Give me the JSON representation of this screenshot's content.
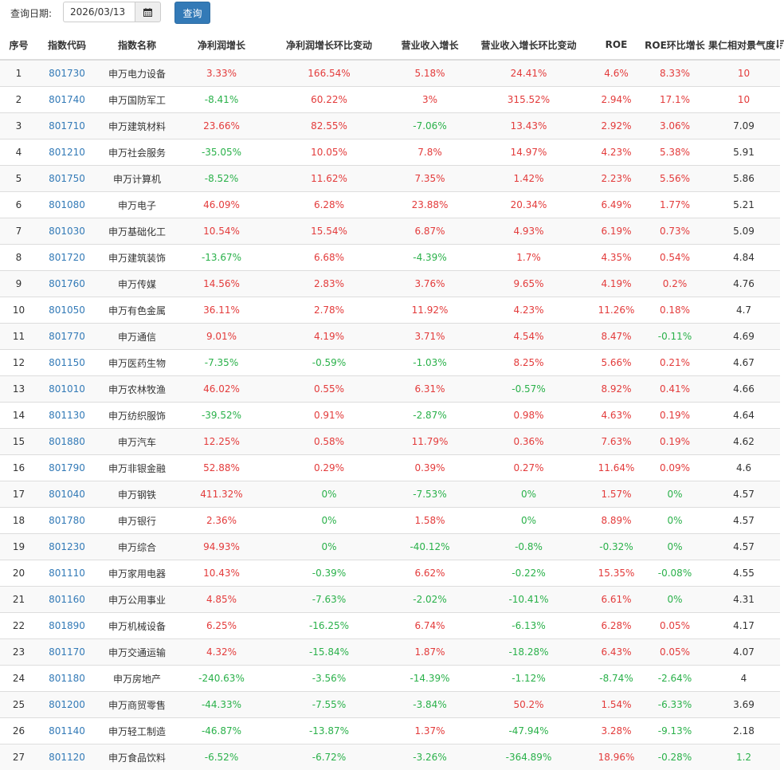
{
  "toolbar": {
    "query_label": "查询日期:",
    "date_value": "2026/03/13",
    "calendar_icon": "calendar-icon",
    "query_button": "查询"
  },
  "colors": {
    "positive": "#e33b3b",
    "negative": "#2ab14a",
    "link": "#337ab7",
    "button": "#337ab7"
  },
  "table": {
    "headers": [
      "序号",
      "指数代码",
      "指数名称",
      "净利润增长",
      "净利润增长环比变动",
      "营业收入增长",
      "营业收入增长环比变动",
      "ROE",
      "ROE环比增长",
      "果仁相对景气度"
    ],
    "sort_icon": "sort-amount-desc-icon",
    "rows": [
      [
        "1",
        "801730",
        "申万电力设备",
        "3.33%",
        "166.54%",
        "5.18%",
        "24.41%",
        "4.6%",
        "8.33%",
        "10"
      ],
      [
        "2",
        "801740",
        "申万国防军工",
        "-8.41%",
        "60.22%",
        "3%",
        "315.52%",
        "2.94%",
        "17.1%",
        "10"
      ],
      [
        "3",
        "801710",
        "申万建筑材料",
        "23.66%",
        "82.55%",
        "-7.06%",
        "13.43%",
        "2.92%",
        "3.06%",
        "7.09"
      ],
      [
        "4",
        "801210",
        "申万社会服务",
        "-35.05%",
        "10.05%",
        "7.8%",
        "14.97%",
        "4.23%",
        "5.38%",
        "5.91"
      ],
      [
        "5",
        "801750",
        "申万计算机",
        "-8.52%",
        "11.62%",
        "7.35%",
        "1.42%",
        "2.23%",
        "5.56%",
        "5.86"
      ],
      [
        "6",
        "801080",
        "申万电子",
        "46.09%",
        "6.28%",
        "23.88%",
        "20.34%",
        "6.49%",
        "1.77%",
        "5.21"
      ],
      [
        "7",
        "801030",
        "申万基础化工",
        "10.54%",
        "15.54%",
        "6.87%",
        "4.93%",
        "6.19%",
        "0.73%",
        "5.09"
      ],
      [
        "8",
        "801720",
        "申万建筑装饰",
        "-13.67%",
        "6.68%",
        "-4.39%",
        "1.7%",
        "4.35%",
        "0.54%",
        "4.84"
      ],
      [
        "9",
        "801760",
        "申万传媒",
        "14.56%",
        "2.83%",
        "3.76%",
        "9.65%",
        "4.19%",
        "0.2%",
        "4.76"
      ],
      [
        "10",
        "801050",
        "申万有色金属",
        "36.11%",
        "2.78%",
        "11.92%",
        "4.23%",
        "11.26%",
        "0.18%",
        "4.7"
      ],
      [
        "11",
        "801770",
        "申万通信",
        "9.01%",
        "4.19%",
        "3.71%",
        "4.54%",
        "8.47%",
        "-0.11%",
        "4.69"
      ],
      [
        "12",
        "801150",
        "申万医药生物",
        "-7.35%",
        "-0.59%",
        "-1.03%",
        "8.25%",
        "5.66%",
        "0.21%",
        "4.67"
      ],
      [
        "13",
        "801010",
        "申万农林牧渔",
        "46.02%",
        "0.55%",
        "6.31%",
        "-0.57%",
        "8.92%",
        "0.41%",
        "4.66"
      ],
      [
        "14",
        "801130",
        "申万纺织服饰",
        "-39.52%",
        "0.91%",
        "-2.87%",
        "0.98%",
        "4.63%",
        "0.19%",
        "4.64"
      ],
      [
        "15",
        "801880",
        "申万汽车",
        "12.25%",
        "0.58%",
        "11.79%",
        "0.36%",
        "7.63%",
        "0.19%",
        "4.62"
      ],
      [
        "16",
        "801790",
        "申万非银金融",
        "52.88%",
        "0.29%",
        "0.39%",
        "0.27%",
        "11.64%",
        "0.09%",
        "4.6"
      ],
      [
        "17",
        "801040",
        "申万钢铁",
        "411.32%",
        "0%",
        "-7.53%",
        "0%",
        "1.57%",
        "0%",
        "4.57"
      ],
      [
        "18",
        "801780",
        "申万银行",
        "2.36%",
        "0%",
        "1.58%",
        "0%",
        "8.89%",
        "0%",
        "4.57"
      ],
      [
        "19",
        "801230",
        "申万综合",
        "94.93%",
        "0%",
        "-40.12%",
        "-0.8%",
        "-0.32%",
        "0%",
        "4.57"
      ],
      [
        "20",
        "801110",
        "申万家用电器",
        "10.43%",
        "-0.39%",
        "6.62%",
        "-0.22%",
        "15.35%",
        "-0.08%",
        "4.55"
      ],
      [
        "21",
        "801160",
        "申万公用事业",
        "4.85%",
        "-7.63%",
        "-2.02%",
        "-10.41%",
        "6.61%",
        "0%",
        "4.31"
      ],
      [
        "22",
        "801890",
        "申万机械设备",
        "6.25%",
        "-16.25%",
        "6.74%",
        "-6.13%",
        "6.28%",
        "0.05%",
        "4.17"
      ],
      [
        "23",
        "801170",
        "申万交通运输",
        "4.32%",
        "-15.84%",
        "1.87%",
        "-18.28%",
        "6.43%",
        "0.05%",
        "4.07"
      ],
      [
        "24",
        "801180",
        "申万房地产",
        "-240.63%",
        "-3.56%",
        "-14.39%",
        "-1.12%",
        "-8.74%",
        "-2.64%",
        "4"
      ],
      [
        "25",
        "801200",
        "申万商贸零售",
        "-44.33%",
        "-7.55%",
        "-3.84%",
        "50.2%",
        "1.54%",
        "-6.33%",
        "3.69"
      ],
      [
        "26",
        "801140",
        "申万轻工制造",
        "-46.87%",
        "-13.87%",
        "1.37%",
        "-47.94%",
        "3.28%",
        "-9.13%",
        "2.18"
      ],
      [
        "27",
        "801120",
        "申万食品饮料",
        "-6.52%",
        "-6.72%",
        "-3.26%",
        "-364.89%",
        "18.96%",
        "-0.28%",
        "1.2"
      ]
    ]
  }
}
